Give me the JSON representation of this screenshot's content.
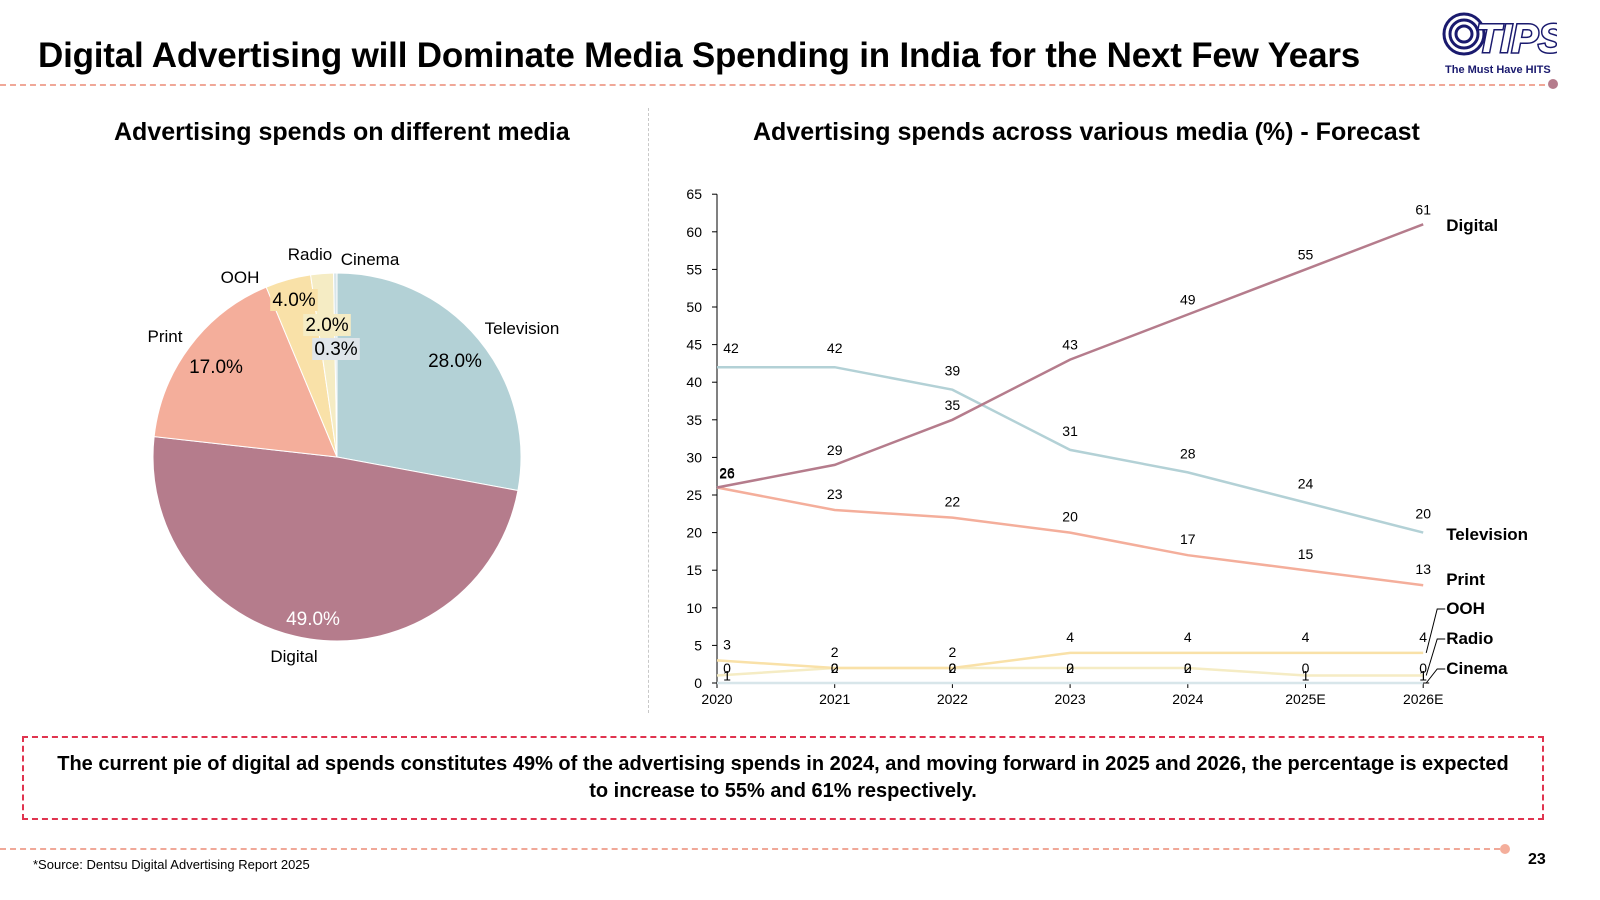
{
  "header": {
    "title": "Digital Advertising will Dominate Media Spending in India for the Next Few Years",
    "logo_text": "TIPS",
    "logo_tagline": "The Must Have HITS"
  },
  "colors": {
    "television": "#b3d1d6",
    "digital": "#b57c8c",
    "print": "#f4ae9b",
    "ooh": "#f9e1a8",
    "radio": "#f5ecc4",
    "cinema": "#d8e6ea",
    "accent": "#e0344f",
    "logo": "#1a1a6e",
    "rule": "#f0a898"
  },
  "chart_data": [
    {
      "type": "pie",
      "title": "Advertising spends on different media",
      "categories": [
        "Television",
        "Digital",
        "Print",
        "OOH",
        "Radio",
        "Cinema"
      ],
      "values": [
        28.0,
        49.0,
        17.0,
        4.0,
        2.0,
        0.3
      ],
      "value_labels": [
        "28.0%",
        "49.0%",
        "17.0%",
        "4.0%",
        "2.0%",
        "0.3%"
      ]
    },
    {
      "type": "line",
      "title": "Advertising spends across various media (%)  - Forecast",
      "x": [
        "2020",
        "2021",
        "2022",
        "2023",
        "2024",
        "2025E",
        "2026E"
      ],
      "ylim": [
        0,
        65
      ],
      "yticks": [
        0,
        5,
        10,
        15,
        20,
        25,
        30,
        35,
        40,
        45,
        50,
        55,
        60,
        65
      ],
      "series": [
        {
          "name": "Digital",
          "values": [
            26,
            29,
            35,
            43,
            49,
            55,
            61
          ]
        },
        {
          "name": "Television",
          "values": [
            42,
            42,
            39,
            31,
            28,
            24,
            20
          ]
        },
        {
          "name": "Print",
          "values": [
            26,
            23,
            22,
            20,
            17,
            15,
            13
          ]
        },
        {
          "name": "OOH",
          "values": [
            3,
            2,
            2,
            4,
            4,
            4,
            4
          ]
        },
        {
          "name": "Radio",
          "values": [
            1,
            2,
            2,
            2,
            2,
            1,
            1
          ]
        },
        {
          "name": "Cinema",
          "values": [
            0,
            0,
            0,
            0,
            0,
            0,
            0
          ]
        }
      ]
    }
  ],
  "note": "The current pie of digital ad spends constitutes 49% of the advertising spends in 2024, and moving forward in 2025 and 2026, the percentage is expected to increase to 55% and 61% respectively.",
  "footer": {
    "source": "*Source: Dentsu Digital Advertising Report 2025",
    "page_number": "23"
  }
}
